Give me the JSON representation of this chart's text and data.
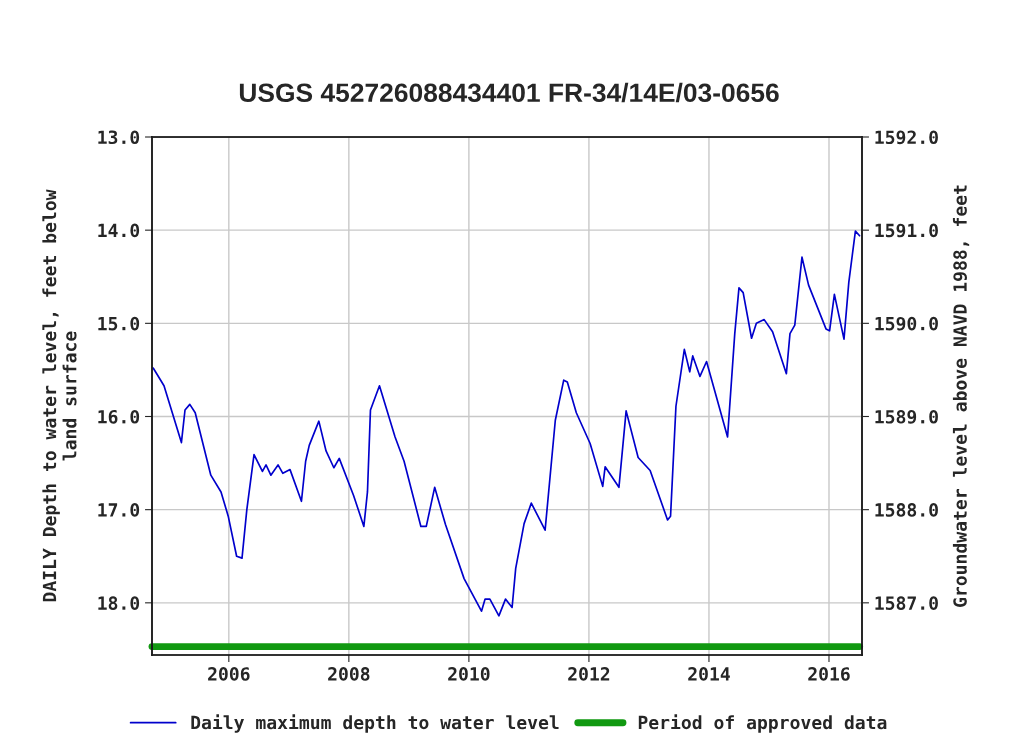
{
  "chart_data": {
    "type": "line",
    "title": "USGS 452726088434401 FR-34/14E/03-0656",
    "ylabel": "DAILY Depth to water level, feet below\nland surface",
    "y2label": "Groundwater level above NAVD 1988, feet",
    "xlim": [
      2004.72,
      2016.55
    ],
    "xticks": [
      2006,
      2008,
      2010,
      2012,
      2014,
      2016
    ],
    "ylim": [
      18.56,
      13.0
    ],
    "yticks": [
      {
        "value": 13,
        "label": "13.0"
      },
      {
        "value": 14,
        "label": "14.0"
      },
      {
        "value": 15,
        "label": "15.0"
      },
      {
        "value": 16,
        "label": "16.0"
      },
      {
        "value": 17,
        "label": "17.0"
      },
      {
        "value": 18,
        "label": "18.0"
      }
    ],
    "y2lim": [
      1586.44,
      1592.0
    ],
    "y2ticks": [
      {
        "value": 1587,
        "label": "1587.0"
      },
      {
        "value": 1588,
        "label": "1588.0"
      },
      {
        "value": 1589,
        "label": "1589.0"
      },
      {
        "value": 1590,
        "label": "1590.0"
      },
      {
        "value": 1591,
        "label": "1591.0"
      },
      {
        "value": 1592,
        "label": "1592.0"
      }
    ],
    "grid": true,
    "legend": "bottom",
    "marker": "none",
    "series": [
      {
        "name": "Daily maximum depth to water level",
        "color": "#0000cc",
        "line_style": "solid",
        "x": [
          2004.74,
          2004.92,
          2005.21,
          2005.27,
          2005.35,
          2005.44,
          2005.7,
          2005.87,
          2005.99,
          2006.13,
          2006.22,
          2006.3,
          2006.42,
          2006.56,
          2006.62,
          2006.7,
          2006.82,
          2006.9,
          2007.02,
          2007.21,
          2007.28,
          2007.34,
          2007.5,
          2007.62,
          2007.75,
          2007.84,
          2008.08,
          2008.25,
          2008.31,
          2008.36,
          2008.51,
          2008.77,
          2008.92,
          2009.2,
          2009.29,
          2009.43,
          2009.61,
          2009.92,
          2010.21,
          2010.27,
          2010.35,
          2010.5,
          2010.61,
          2010.72,
          2010.78,
          2010.92,
          2011.04,
          2011.27,
          2011.44,
          2011.58,
          2011.64,
          2011.79,
          2012.02,
          2012.23,
          2012.27,
          2012.5,
          2012.62,
          2012.82,
          2013.02,
          2013.31,
          2013.36,
          2013.45,
          2013.59,
          2013.68,
          2013.73,
          2013.85,
          2013.96,
          2014.31,
          2014.43,
          2014.5,
          2014.57,
          2014.71,
          2014.79,
          2014.92,
          2015.06,
          2015.29,
          2015.35,
          2015.43,
          2015.55,
          2015.66,
          2015.95,
          2016.01,
          2016.09,
          2016.25,
          2016.33,
          2016.44,
          2016.51
        ],
        "values": [
          15.48,
          15.67,
          16.28,
          15.93,
          15.87,
          15.96,
          16.63,
          16.81,
          17.07,
          17.5,
          17.52,
          17.0,
          16.41,
          16.59,
          16.52,
          16.63,
          16.52,
          16.61,
          16.57,
          16.91,
          16.48,
          16.31,
          16.05,
          16.37,
          16.55,
          16.45,
          16.85,
          17.18,
          16.81,
          15.93,
          15.67,
          16.22,
          16.48,
          17.18,
          17.18,
          16.76,
          17.16,
          17.74,
          18.09,
          17.96,
          17.96,
          18.14,
          17.96,
          18.05,
          17.63,
          17.15,
          16.93,
          17.22,
          16.04,
          15.61,
          15.63,
          15.96,
          16.29,
          16.75,
          16.54,
          16.76,
          15.94,
          16.44,
          16.58,
          17.11,
          17.07,
          15.89,
          15.28,
          15.52,
          15.35,
          15.57,
          15.41,
          16.22,
          15.11,
          14.62,
          14.67,
          15.16,
          15.0,
          14.96,
          15.09,
          15.54,
          15.11,
          15.02,
          14.29,
          14.59,
          15.06,
          15.08,
          14.69,
          15.17,
          14.56,
          14.01,
          14.06
        ]
      },
      {
        "name": "Period of approved data",
        "color": "#119911",
        "line_style": "solid",
        "x": [
          2004.72,
          2016.51
        ],
        "values": [
          18.47,
          18.47
        ]
      }
    ]
  }
}
